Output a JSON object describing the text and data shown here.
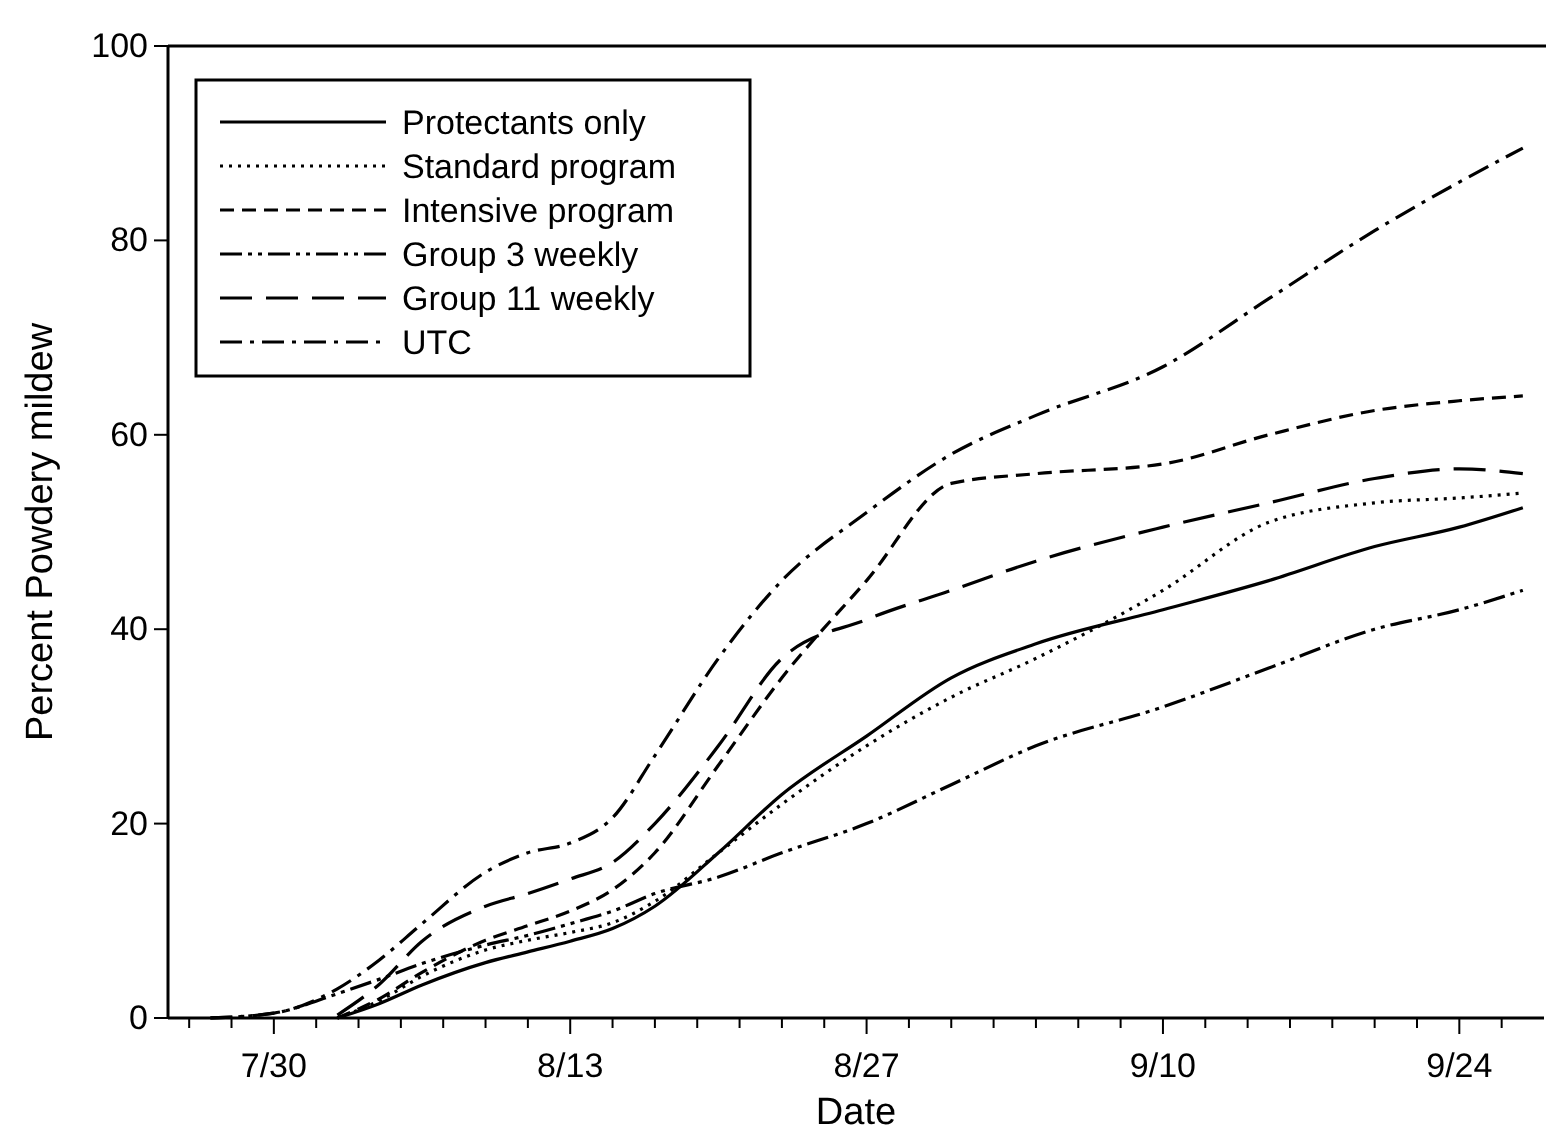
{
  "chart_data": {
    "type": "line",
    "xlabel": "Date",
    "ylabel": "Percent Powdery mildew",
    "x": [
      "--07-27",
      "--07-30",
      "--08-02",
      "--08-04",
      "--08-06",
      "--08-09",
      "--08-11",
      "--08-13",
      "--08-15",
      "--08-17",
      "--08-20",
      "--08-23",
      "--08-27",
      "--08-31",
      "--09-04",
      "--09-10",
      "--09-15",
      "--09-20",
      "--09-24",
      "--09-27"
    ],
    "xlim": [
      "--07-25",
      "--09-28"
    ],
    "xticks": [
      {
        "value": "--07-26",
        "label": null
      },
      {
        "value": "--07-28",
        "label": null
      },
      {
        "value": "--07-30",
        "label": "7/30"
      },
      {
        "value": "--08-01",
        "label": null
      },
      {
        "value": "--08-03",
        "label": null
      },
      {
        "value": "--08-05",
        "label": null
      },
      {
        "value": "--08-07",
        "label": null
      },
      {
        "value": "--08-09",
        "label": null
      },
      {
        "value": "--08-11",
        "label": null
      },
      {
        "value": "--08-13",
        "label": "8/13"
      },
      {
        "value": "--08-15",
        "label": null
      },
      {
        "value": "--08-17",
        "label": null
      },
      {
        "value": "--08-19",
        "label": null
      },
      {
        "value": "--08-21",
        "label": null
      },
      {
        "value": "--08-23",
        "label": null
      },
      {
        "value": "--08-25",
        "label": null
      },
      {
        "value": "--08-27",
        "label": "8/27"
      },
      {
        "value": "--08-29",
        "label": null
      },
      {
        "value": "--08-31",
        "label": null
      },
      {
        "value": "--09-02",
        "label": null
      },
      {
        "value": "--09-04",
        "label": null
      },
      {
        "value": "--09-06",
        "label": null
      },
      {
        "value": "--09-08",
        "label": null
      },
      {
        "value": "--09-10",
        "label": "9/10"
      },
      {
        "value": "--09-12",
        "label": null
      },
      {
        "value": "--09-14",
        "label": null
      },
      {
        "value": "--09-16",
        "label": null
      },
      {
        "value": "--09-18",
        "label": null
      },
      {
        "value": "--09-20",
        "label": null
      },
      {
        "value": "--09-22",
        "label": null
      },
      {
        "value": "--09-24",
        "label": "9/24"
      },
      {
        "value": "--09-26",
        "label": null
      }
    ],
    "ylim": [
      0,
      100
    ],
    "yticks": [
      0,
      20,
      40,
      60,
      80,
      100
    ],
    "grid": false,
    "legend": "top left",
    "marker": "none",
    "series": [
      {
        "name": "Protectants only",
        "color": "#000000",
        "line_style": "solid",
        "values": [
          null,
          null,
          0,
          1.5,
          3.4,
          5.7,
          6.8,
          7.9,
          9.2,
          11.5,
          17,
          23,
          29,
          35,
          38.5,
          42,
          45,
          48.5,
          50.5,
          52.5
        ]
      },
      {
        "name": "Standard program",
        "color": "#000000",
        "line_style": "dotted",
        "values": [
          null,
          null,
          0,
          1.8,
          4.3,
          7,
          8,
          8.8,
          9.8,
          12,
          17,
          22,
          28,
          33,
          37,
          44,
          51,
          53,
          53.5,
          54
        ]
      },
      {
        "name": "Intensive program",
        "color": "#000000",
        "line_style": "dashed",
        "values": [
          null,
          null,
          0,
          2,
          4.7,
          8,
          9.5,
          11,
          13.2,
          17,
          26,
          35,
          45,
          55,
          56,
          57,
          60,
          62.5,
          63.5,
          64
        ]
      },
      {
        "name": "Group 3 weekly",
        "color": "#000000",
        "line_style": "dashdotdot",
        "values": [
          0,
          0.5,
          2.5,
          4,
          5.6,
          7.5,
          8.5,
          9.7,
          11,
          12.8,
          14.5,
          17,
          20,
          24,
          28,
          32,
          36,
          40,
          42,
          44
        ]
      },
      {
        "name": "Group 11 weekly",
        "color": "#000000",
        "line_style": "longdash",
        "values": [
          null,
          null,
          0.3,
          3.5,
          7.9,
          11.5,
          12.8,
          14.3,
          16,
          20,
          28,
          37,
          41,
          44,
          47,
          50.5,
          53,
          55.5,
          56.5,
          56
        ]
      },
      {
        "name": "UTC",
        "color": "#000000",
        "line_style": "dashdot",
        "values": [
          0,
          0.5,
          3,
          6,
          9.7,
          15,
          17,
          18,
          20.6,
          27,
          37,
          45,
          52,
          58,
          62,
          67,
          74,
          81,
          86,
          89.5
        ]
      }
    ]
  }
}
